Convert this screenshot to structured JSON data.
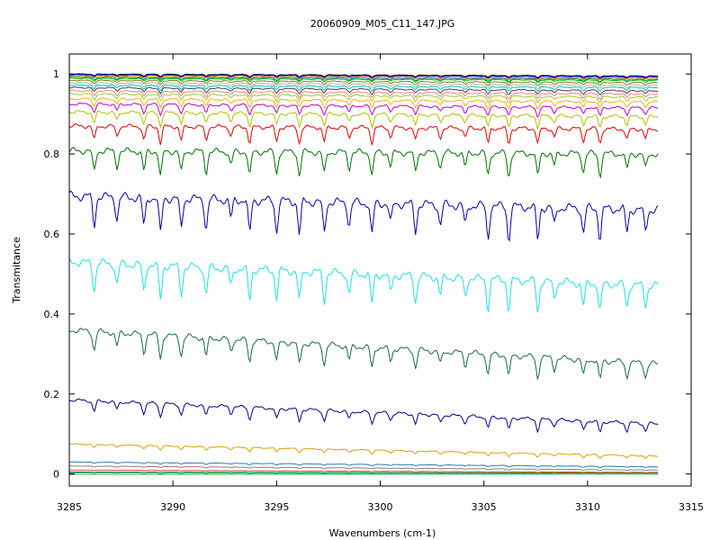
{
  "chart_data": {
    "type": "line",
    "title": "20060909_M05_C11_147.JPG",
    "xlabel": "Wavenumbers (cm-1)",
    "ylabel": "Transmitance",
    "xlim": [
      3285,
      3315
    ],
    "ylim": [
      -0.03,
      1.05
    ],
    "x_data_range": [
      3285,
      3313.4
    ],
    "x_ticks": [
      3285,
      3290,
      3295,
      3300,
      3305,
      3310,
      3315
    ],
    "y_ticks": [
      0,
      0.2,
      0.4,
      0.6,
      0.8,
      1
    ],
    "x_tick_labels": [
      "3285",
      "3290",
      "3295",
      "3300",
      "3305",
      "3310",
      "3315"
    ],
    "y_tick_labels": [
      "0",
      "0.2",
      "0.4",
      "0.6",
      "0.8",
      "1"
    ],
    "grid": false,
    "legend": "none",
    "absorption_lines": [
      3286.2,
      3287.3,
      3288.6,
      3289.4,
      3290.4,
      3291.6,
      3292.8,
      3293.7,
      3295.0,
      3296.1,
      3297.3,
      3298.5,
      3299.6,
      3300.5,
      3301.7,
      3302.9,
      3304.1,
      3305.2,
      3306.2,
      3307.6,
      3308.4,
      3309.8,
      3310.6,
      3311.9,
      3312.8
    ],
    "series": [
      {
        "color": "#000000",
        "start": 1.0,
        "end": 0.995,
        "depth": 0.004
      },
      {
        "color": "#0000ff",
        "start": 0.998,
        "end": 0.993,
        "depth": 0.005
      },
      {
        "color": "#ff8c00",
        "start": 0.995,
        "end": 0.99,
        "depth": 0.005
      },
      {
        "color": "#008080",
        "start": 0.992,
        "end": 0.987,
        "depth": 0.006
      },
      {
        "color": "#00c000",
        "start": 0.989,
        "end": 0.984,
        "depth": 0.006
      },
      {
        "color": "#808000",
        "start": 0.984,
        "end": 0.978,
        "depth": 0.007
      },
      {
        "color": "#b0b0b0",
        "start": 0.978,
        "end": 0.972,
        "depth": 0.008
      },
      {
        "color": "#00bfbf",
        "start": 0.972,
        "end": 0.966,
        "depth": 0.009
      },
      {
        "color": "#404040",
        "start": 0.966,
        "end": 0.958,
        "depth": 0.01
      },
      {
        "color": "#ff7f7f",
        "start": 0.958,
        "end": 0.95,
        "depth": 0.012
      },
      {
        "color": "#9acd32",
        "start": 0.95,
        "end": 0.942,
        "depth": 0.013
      },
      {
        "color": "#ffb000",
        "start": 0.938,
        "end": 0.93,
        "depth": 0.016
      },
      {
        "color": "#c000c0",
        "start": 0.925,
        "end": 0.915,
        "depth": 0.02
      },
      {
        "color": "#b0c000",
        "start": 0.905,
        "end": 0.893,
        "depth": 0.026
      },
      {
        "color": "#e00000",
        "start": 0.87,
        "end": 0.862,
        "depth": 0.033
      },
      {
        "color": "#007000",
        "start": 0.808,
        "end": 0.8,
        "depth": 0.05
      },
      {
        "color": "#0000b0",
        "start": 0.695,
        "end": 0.66,
        "depth": 0.07
      },
      {
        "color": "#20e0e0",
        "start": 0.53,
        "end": 0.47,
        "depth": 0.065
      },
      {
        "color": "#1a6b3c",
        "start": 0.36,
        "end": 0.275,
        "depth": 0.045
      },
      {
        "color": "#00008b",
        "start": 0.185,
        "end": 0.125,
        "depth": 0.025
      },
      {
        "color": "#daa000",
        "start": 0.075,
        "end": 0.045,
        "depth": 0.008
      },
      {
        "color": "#2a7ab0",
        "start": 0.03,
        "end": 0.018,
        "depth": 0.003
      },
      {
        "color": "#808080",
        "start": 0.02,
        "end": 0.01,
        "depth": 0.002
      },
      {
        "color": "#ff4040",
        "start": 0.01,
        "end": 0.004,
        "depth": 0.001
      },
      {
        "color": "#008800",
        "start": 0.005,
        "end": 0.002,
        "depth": 0.001
      },
      {
        "color": "#00a0ff",
        "start": 0.002,
        "end": 0.0,
        "depth": 0.001
      },
      {
        "color": "#80e080",
        "start": -0.002,
        "end": -0.001,
        "depth": 0.0
      }
    ]
  }
}
